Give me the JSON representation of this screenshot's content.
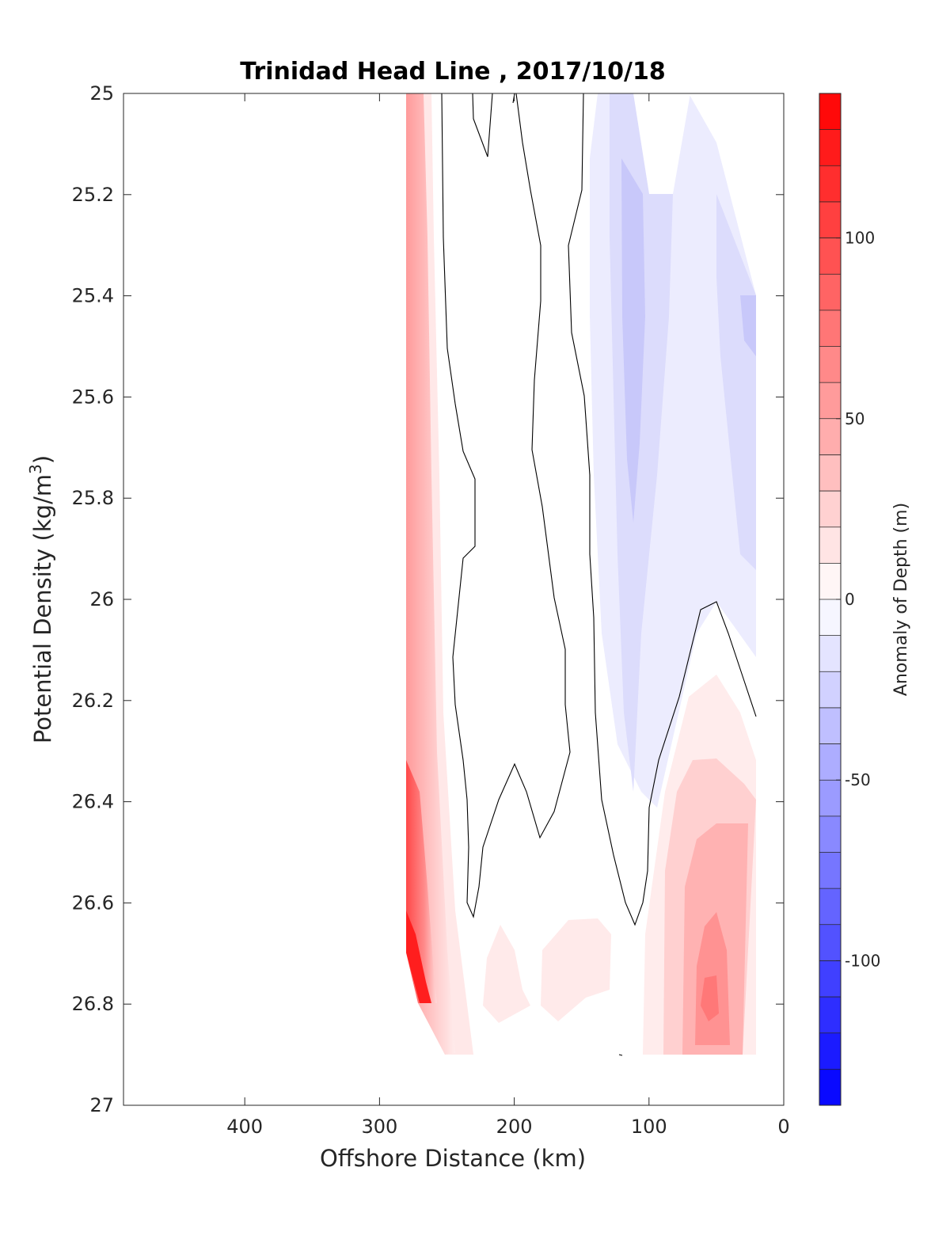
{
  "chart_data": {
    "type": "heatmap",
    "subtype": "filled-contour",
    "title": "Trinidad Head Line , 2017/10/18",
    "xlabel": "Offshore Distance (km)",
    "ylabel_main": "Potential Density (kg/m",
    "ylabel_sup": "3",
    "ylabel_end": ")",
    "xlim": [
      490,
      0
    ],
    "ylim": [
      25,
      27
    ],
    "x_reversed": true,
    "y_reversed": true,
    "xticks": [
      400,
      300,
      200,
      100,
      0
    ],
    "yticks": [
      "25",
      "25.2",
      "25.4",
      "25.6",
      "25.8",
      "26",
      "26.2",
      "26.4",
      "26.6",
      "26.8",
      "27"
    ],
    "colorbar": {
      "label": "Anomaly of Depth (m)",
      "range": [
        -140,
        140
      ],
      "ticks": [
        100,
        50,
        0,
        -50,
        -100
      ],
      "levels": 28,
      "colormap": "blue-white-red",
      "color_min": "#0000ff",
      "color_max": "#ff0000",
      "color_mid": "#ffffff"
    },
    "zero_contour_color": "#000000",
    "regions": [
      {
        "name": "offshore positive band",
        "x_range": [
          282,
          250
        ],
        "y_range": [
          25.0,
          26.92
        ],
        "max_anomaly": 130,
        "sign": "positive"
      },
      {
        "name": "nearshore negative core",
        "x_range": [
          140,
          20
        ],
        "y_range": [
          25.0,
          26.4
        ],
        "min_anomaly": -35,
        "sign": "negative"
      },
      {
        "name": "nearshore deep positive core",
        "x_range": [
          110,
          20
        ],
        "y_range": [
          26.15,
          26.92
        ],
        "max_anomaly": 60,
        "sign": "positive"
      },
      {
        "name": "mid-section deep weak positive patches",
        "x_range": [
          225,
          125
        ],
        "y_range": [
          26.65,
          26.85
        ],
        "max_anomaly": 15,
        "sign": "positive"
      }
    ]
  }
}
